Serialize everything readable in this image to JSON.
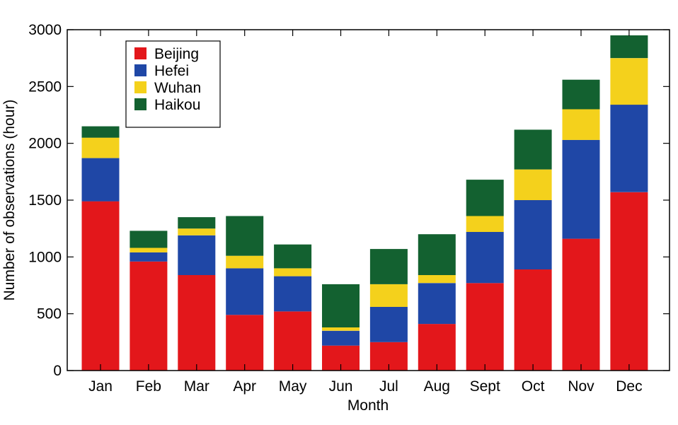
{
  "chart_data": {
    "type": "bar",
    "stacked": true,
    "title": "",
    "xlabel": "Month",
    "ylabel": "Number of observations (hour)",
    "ylim": [
      0,
      3000
    ],
    "yticks": [
      0,
      500,
      1000,
      1500,
      2000,
      2500,
      3000
    ],
    "categories": [
      "Jan",
      "Feb",
      "Mar",
      "Apr",
      "May",
      "Jun",
      "Jul",
      "Aug",
      "Sept",
      "Oct",
      "Nov",
      "Dec"
    ],
    "series": [
      {
        "name": "Beijing",
        "color": "#e3171b",
        "values": [
          1490,
          960,
          840,
          490,
          520,
          220,
          250,
          410,
          770,
          890,
          1160,
          1570
        ]
      },
      {
        "name": "Hefei",
        "color": "#1f47a6",
        "values": [
          380,
          80,
          350,
          410,
          310,
          130,
          310,
          360,
          450,
          610,
          870,
          770
        ]
      },
      {
        "name": "Wuhan",
        "color": "#f4d11c",
        "values": [
          180,
          40,
          60,
          110,
          70,
          30,
          200,
          70,
          140,
          270,
          270,
          410
        ]
      },
      {
        "name": "Haikou",
        "color": "#136130",
        "values": [
          100,
          150,
          100,
          350,
          210,
          380,
          310,
          360,
          320,
          350,
          260,
          200
        ]
      }
    ],
    "legend_position": "top-left"
  }
}
